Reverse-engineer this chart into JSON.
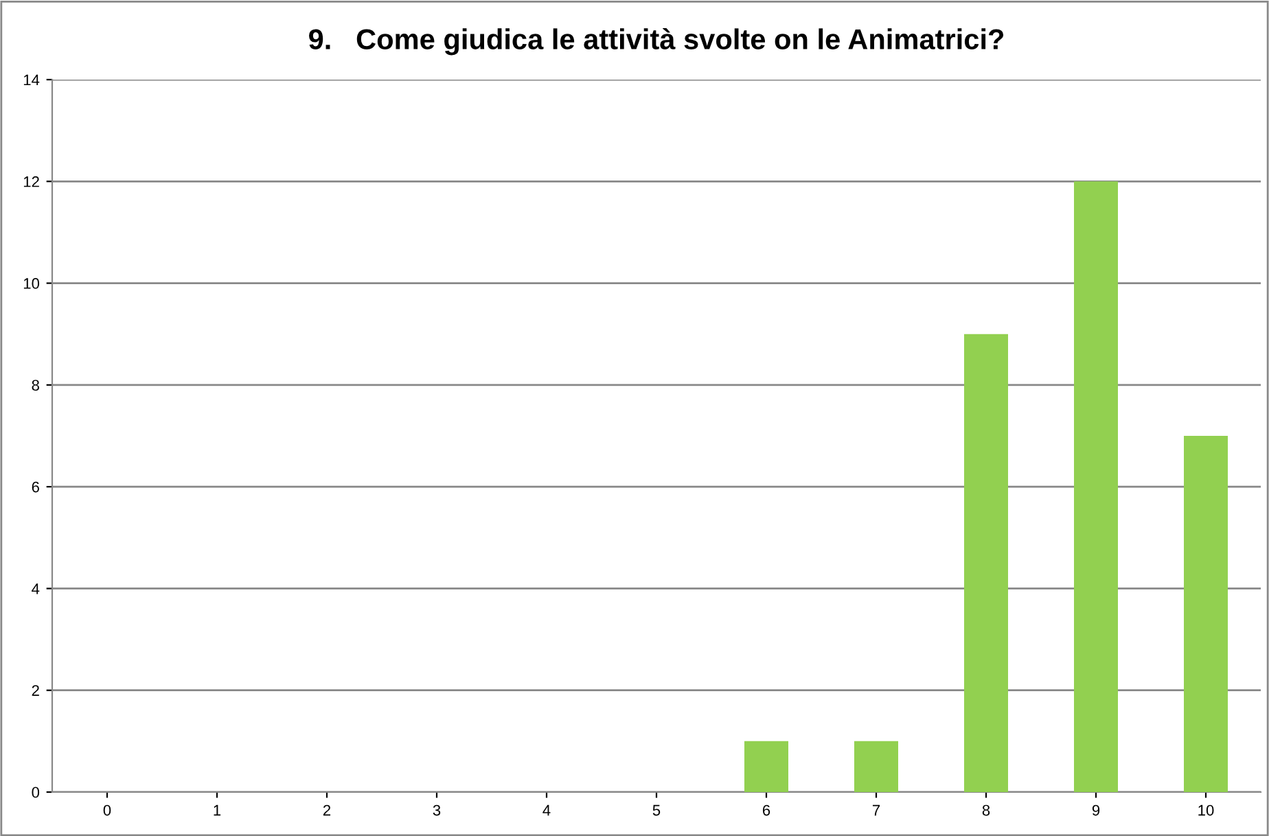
{
  "chart_data": {
    "type": "bar",
    "title": "9.   Come giudica le attività svolte on le Animatrici?",
    "categories": [
      "0",
      "1",
      "2",
      "3",
      "4",
      "5",
      "6",
      "7",
      "8",
      "9",
      "10"
    ],
    "values": [
      0,
      0,
      0,
      0,
      0,
      0,
      1,
      1,
      9,
      12,
      7
    ],
    "color": "#92d050",
    "ylim": [
      0,
      14
    ],
    "yticks": [
      0,
      2,
      4,
      6,
      8,
      10,
      12,
      14
    ],
    "grid": "y",
    "legend": false
  }
}
